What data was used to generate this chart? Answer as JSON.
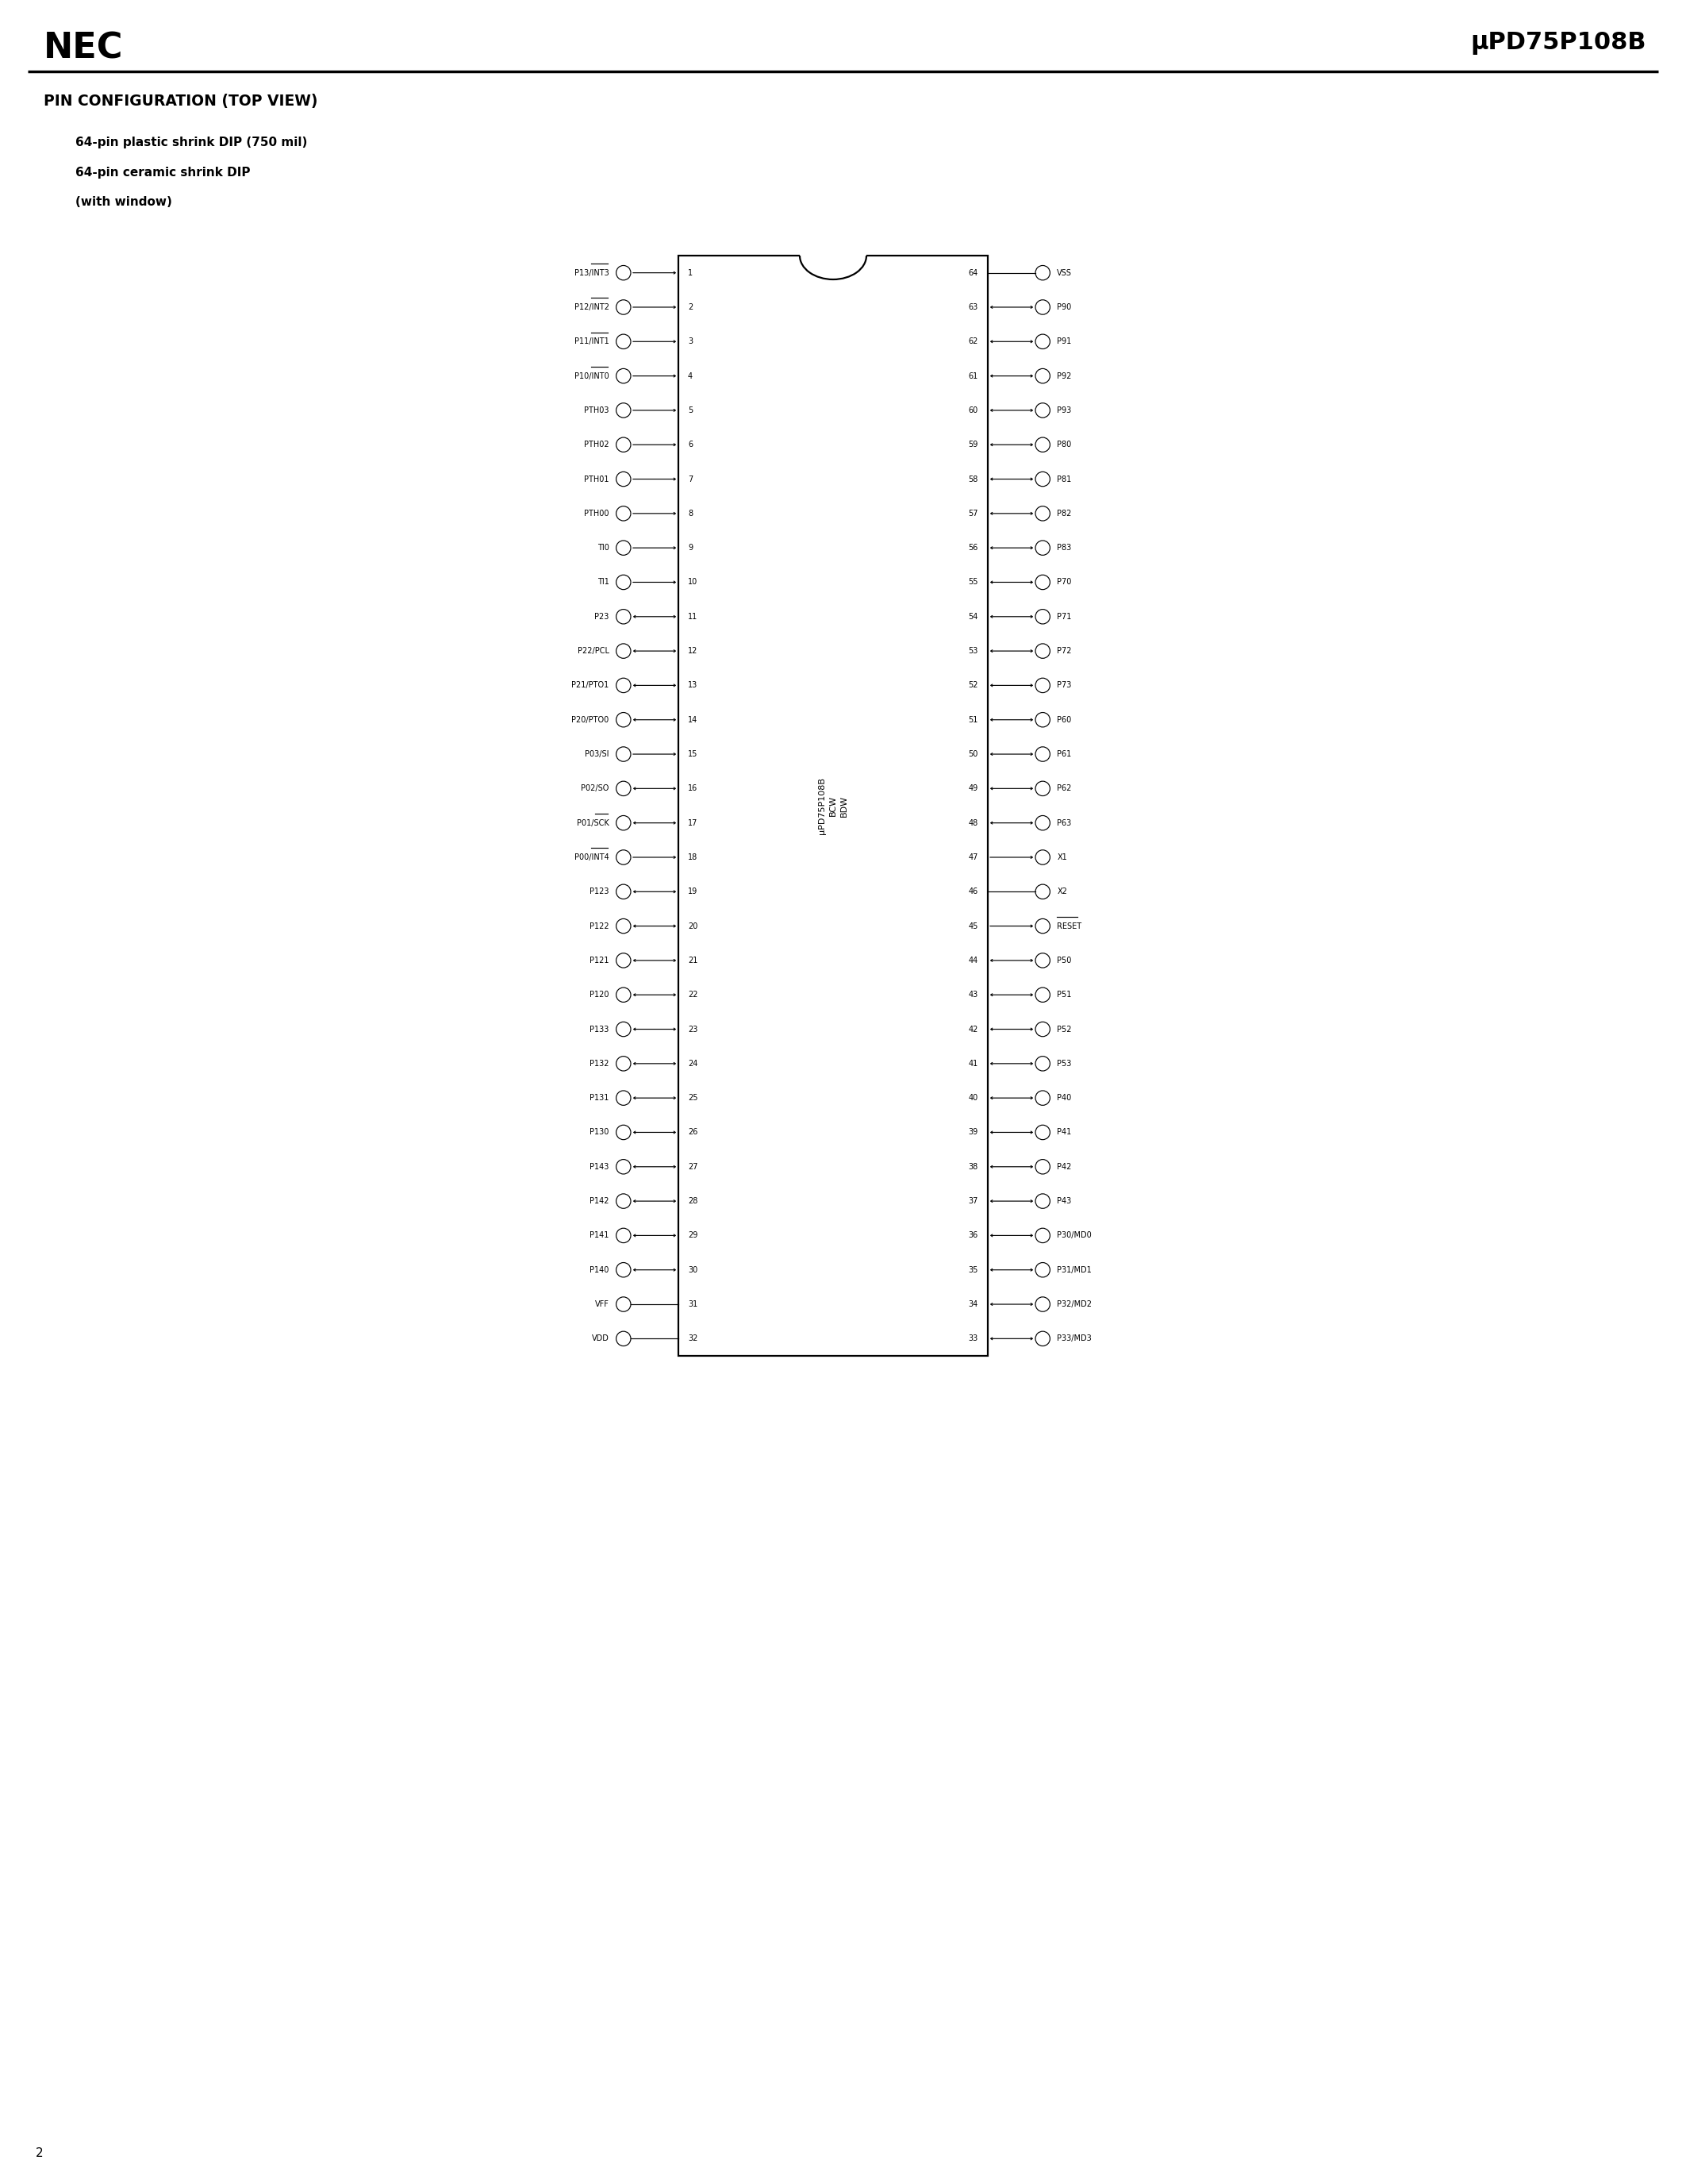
{
  "title_left": "NEC",
  "title_right": "μPD75P108B",
  "section_title": "PIN CONFIGURATION (TOP VIEW)",
  "subtitle1": "64-pin plastic shrink DIP (750 mil)",
  "subtitle2": "64-pin ceramic shrink DIP",
  "subtitle3": "(with window)",
  "bg_color": "#ffffff",
  "text_color": "#000000",
  "page_num": "2",
  "left_pins": [
    {
      "num": 1,
      "label": "P13/INT3",
      "overline": "INT3",
      "arrow": "right"
    },
    {
      "num": 2,
      "label": "P12/INT2",
      "overline": "INT2",
      "arrow": "right"
    },
    {
      "num": 3,
      "label": "P11/INT1",
      "overline": "INT1",
      "arrow": "right"
    },
    {
      "num": 4,
      "label": "P10/INT0",
      "overline": "INT0",
      "arrow": "right"
    },
    {
      "num": 5,
      "label": "PTH03",
      "overline": "",
      "arrow": "right"
    },
    {
      "num": 6,
      "label": "PTH02",
      "overline": "",
      "arrow": "right"
    },
    {
      "num": 7,
      "label": "PTH01",
      "overline": "",
      "arrow": "right"
    },
    {
      "num": 8,
      "label": "PTH00",
      "overline": "",
      "arrow": "right"
    },
    {
      "num": 9,
      "label": "TI0",
      "overline": "",
      "arrow": "right"
    },
    {
      "num": 10,
      "label": "TI1",
      "overline": "",
      "arrow": "right"
    },
    {
      "num": 11,
      "label": "P23",
      "overline": "",
      "arrow": "both"
    },
    {
      "num": 12,
      "label": "P22/PCL",
      "overline": "",
      "arrow": "both"
    },
    {
      "num": 13,
      "label": "P21/PTO1",
      "overline": "",
      "arrow": "both"
    },
    {
      "num": 14,
      "label": "P20/PTO0",
      "overline": "",
      "arrow": "both"
    },
    {
      "num": 15,
      "label": "P03/SI",
      "overline": "",
      "arrow": "right"
    },
    {
      "num": 16,
      "label": "P02/SO",
      "overline": "",
      "arrow": "both"
    },
    {
      "num": 17,
      "label": "P01/SCK",
      "overline": "SCK",
      "arrow": "both"
    },
    {
      "num": 18,
      "label": "P00/INT4",
      "overline": "INT4",
      "arrow": "right"
    },
    {
      "num": 19,
      "label": "P123",
      "overline": "",
      "arrow": "both"
    },
    {
      "num": 20,
      "label": "P122",
      "overline": "",
      "arrow": "both"
    },
    {
      "num": 21,
      "label": "P121",
      "overline": "",
      "arrow": "both"
    },
    {
      "num": 22,
      "label": "P120",
      "overline": "",
      "arrow": "both"
    },
    {
      "num": 23,
      "label": "P133",
      "overline": "",
      "arrow": "both"
    },
    {
      "num": 24,
      "label": "P132",
      "overline": "",
      "arrow": "both"
    },
    {
      "num": 25,
      "label": "P131",
      "overline": "",
      "arrow": "both"
    },
    {
      "num": 26,
      "label": "P130",
      "overline": "",
      "arrow": "both"
    },
    {
      "num": 27,
      "label": "P143",
      "overline": "",
      "arrow": "both"
    },
    {
      "num": 28,
      "label": "P142",
      "overline": "",
      "arrow": "both"
    },
    {
      "num": 29,
      "label": "P141",
      "overline": "",
      "arrow": "both"
    },
    {
      "num": 30,
      "label": "P140",
      "overline": "",
      "arrow": "both"
    },
    {
      "num": 31,
      "label": "VFF",
      "overline": "",
      "arrow": "none"
    },
    {
      "num": 32,
      "label": "VDD",
      "overline": "",
      "arrow": "none"
    }
  ],
  "right_pins": [
    {
      "num": 64,
      "label": "VSS",
      "overline": "",
      "arrow": "none"
    },
    {
      "num": 63,
      "label": "P90",
      "overline": "",
      "arrow": "both"
    },
    {
      "num": 62,
      "label": "P91",
      "overline": "",
      "arrow": "both"
    },
    {
      "num": 61,
      "label": "P92",
      "overline": "",
      "arrow": "both"
    },
    {
      "num": 60,
      "label": "P93",
      "overline": "",
      "arrow": "both"
    },
    {
      "num": 59,
      "label": "P80",
      "overline": "",
      "arrow": "both"
    },
    {
      "num": 58,
      "label": "P81",
      "overline": "",
      "arrow": "both"
    },
    {
      "num": 57,
      "label": "P82",
      "overline": "",
      "arrow": "both"
    },
    {
      "num": 56,
      "label": "P83",
      "overline": "",
      "arrow": "both"
    },
    {
      "num": 55,
      "label": "P70",
      "overline": "",
      "arrow": "both"
    },
    {
      "num": 54,
      "label": "P71",
      "overline": "",
      "arrow": "both"
    },
    {
      "num": 53,
      "label": "P72",
      "overline": "",
      "arrow": "both"
    },
    {
      "num": 52,
      "label": "P73",
      "overline": "",
      "arrow": "both"
    },
    {
      "num": 51,
      "label": "P60",
      "overline": "",
      "arrow": "both"
    },
    {
      "num": 50,
      "label": "P61",
      "overline": "",
      "arrow": "both"
    },
    {
      "num": 49,
      "label": "P62",
      "overline": "",
      "arrow": "both"
    },
    {
      "num": 48,
      "label": "P63",
      "overline": "",
      "arrow": "both"
    },
    {
      "num": 47,
      "label": "X1",
      "overline": "",
      "arrow": "left"
    },
    {
      "num": 46,
      "label": "X2",
      "overline": "",
      "arrow": "none"
    },
    {
      "num": 45,
      "label": "RESET",
      "overline": "RESET",
      "arrow": "left"
    },
    {
      "num": 44,
      "label": "P50",
      "overline": "",
      "arrow": "both"
    },
    {
      "num": 43,
      "label": "P51",
      "overline": "",
      "arrow": "both"
    },
    {
      "num": 42,
      "label": "P52",
      "overline": "",
      "arrow": "both"
    },
    {
      "num": 41,
      "label": "P53",
      "overline": "",
      "arrow": "both"
    },
    {
      "num": 40,
      "label": "P40",
      "overline": "",
      "arrow": "both"
    },
    {
      "num": 39,
      "label": "P41",
      "overline": "",
      "arrow": "both"
    },
    {
      "num": 38,
      "label": "P42",
      "overline": "",
      "arrow": "both"
    },
    {
      "num": 37,
      "label": "P43",
      "overline": "",
      "arrow": "both"
    },
    {
      "num": 36,
      "label": "P30/MD0",
      "overline": "",
      "arrow": "both"
    },
    {
      "num": 35,
      "label": "P31/MD1",
      "overline": "",
      "arrow": "both"
    },
    {
      "num": 34,
      "label": "P32/MD2",
      "overline": "",
      "arrow": "both"
    },
    {
      "num": 33,
      "label": "P33/MD3",
      "overline": "",
      "arrow": "both"
    }
  ]
}
